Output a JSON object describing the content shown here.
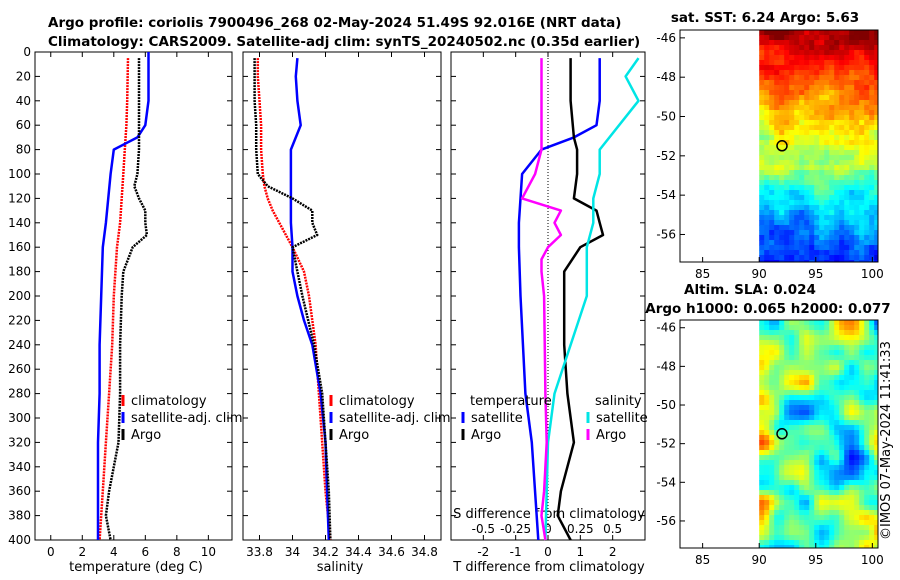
{
  "title": {
    "line1": "Argo profile: coriolis 7900496_268 02-May-2024 51.49S 92.016E (NRT data)",
    "line2": "Climatology: CARS2009. Satellite-adj clim: synTS_20240502.nc (0.35d earlier)"
  },
  "watermark": "©IMOS 07-May-2024 11:41:33",
  "colors": {
    "climatology": "#ff0000",
    "satellite_adj": "#0000ff",
    "argo": "#000000",
    "sat_diff_T": "#0000ff",
    "sat_diff_S": "#00e5e5",
    "argo_diff_S": "#ff00ff"
  },
  "depth_ticks": [
    0,
    20,
    40,
    60,
    80,
    100,
    120,
    140,
    160,
    180,
    200,
    220,
    240,
    260,
    280,
    300,
    320,
    340,
    360,
    380,
    400
  ],
  "legend_main": {
    "climatology": "climatology",
    "satellite": "satellite-adj. clim",
    "argo": "Argo"
  },
  "legend_diff": {
    "temperature_title": "temperature",
    "salinity_title": "salinity",
    "satellite": "satellite",
    "argo": "Argo"
  },
  "chart_data": [
    {
      "type": "line",
      "id": "temperature",
      "xlabel": "temperature (deg C)",
      "ylabel": "depth",
      "xlim": [
        -1,
        11.5
      ],
      "ylim": [
        400,
        0
      ],
      "xticks": [
        "0",
        "2",
        "4",
        "6",
        "8",
        "10"
      ],
      "xtick_values": [
        0,
        2,
        4,
        6,
        8,
        10
      ],
      "series": [
        {
          "name": "climatology",
          "depth": [
            5,
            40,
            60,
            80,
            100,
            120,
            140,
            160,
            180,
            200,
            240,
            280,
            320,
            360,
            380,
            400
          ],
          "values": [
            4.9,
            4.85,
            4.8,
            4.7,
            4.6,
            4.5,
            4.4,
            4.2,
            4.1,
            4.0,
            3.9,
            3.7,
            3.5,
            3.3,
            3.2,
            3.1
          ]
        },
        {
          "name": "satellite-adj. clim",
          "depth": [
            0,
            20,
            40,
            60,
            70,
            80,
            100,
            140,
            160,
            200,
            240,
            280,
            320,
            360,
            380,
            400
          ],
          "values": [
            6.2,
            6.2,
            6.2,
            6.0,
            5.5,
            4.0,
            3.8,
            3.5,
            3.3,
            3.2,
            3.1,
            3.1,
            3.0,
            3.0,
            3.0,
            3.0
          ]
        },
        {
          "name": "Argo",
          "depth": [
            5,
            40,
            80,
            100,
            110,
            120,
            130,
            140,
            150,
            160,
            180,
            200,
            240,
            280,
            320,
            340,
            360,
            380,
            400
          ],
          "values": [
            5.6,
            5.6,
            5.6,
            5.5,
            5.3,
            5.6,
            6.0,
            6.0,
            6.1,
            5.2,
            4.6,
            4.5,
            4.4,
            4.4,
            4.3,
            4.0,
            3.7,
            3.5,
            3.8
          ]
        }
      ]
    },
    {
      "type": "line",
      "id": "salinity",
      "xlabel": "salinity",
      "ylabel": "depth",
      "xlim": [
        33.7,
        34.9
      ],
      "ylim": [
        400,
        0
      ],
      "xticks": [
        "33.8",
        "34",
        "34.2",
        "34.4",
        "34.6",
        "34.8"
      ],
      "xtick_values": [
        33.8,
        34.0,
        34.2,
        34.4,
        34.6,
        34.8
      ],
      "series": [
        {
          "name": "climatology",
          "depth": [
            5,
            20,
            40,
            60,
            80,
            100,
            110,
            120,
            130,
            140,
            160,
            180,
            200,
            240,
            280,
            320,
            360,
            400
          ],
          "values": [
            33.79,
            33.79,
            33.8,
            33.81,
            33.81,
            33.82,
            33.83,
            33.85,
            33.88,
            33.92,
            34.0,
            34.07,
            34.1,
            34.14,
            34.16,
            34.18,
            34.2,
            34.23
          ]
        },
        {
          "name": "satellite-adj. clim",
          "depth": [
            5,
            20,
            40,
            60,
            80,
            100,
            120,
            140,
            160,
            180,
            200,
            220,
            240,
            280,
            320,
            360,
            400
          ],
          "values": [
            34.03,
            34.02,
            34.03,
            34.05,
            33.99,
            33.99,
            33.99,
            33.99,
            34.0,
            34.0,
            34.03,
            34.07,
            34.12,
            34.17,
            34.2,
            34.21,
            34.22
          ]
        },
        {
          "name": "Argo",
          "depth": [
            5,
            20,
            40,
            60,
            80,
            100,
            110,
            120,
            130,
            140,
            150,
            160,
            180,
            200,
            240,
            280,
            320,
            360,
            400
          ],
          "values": [
            33.77,
            33.77,
            33.77,
            33.78,
            33.78,
            33.79,
            33.85,
            34.0,
            34.12,
            34.12,
            34.15,
            34.0,
            34.03,
            34.06,
            34.13,
            34.18,
            34.2,
            34.22,
            34.23
          ]
        }
      ]
    },
    {
      "type": "line",
      "id": "difference",
      "xlabel": "T difference from climatology",
      "xlabel_top": "S difference from climatology",
      "ylabel": "depth",
      "xlim": [
        -3,
        3
      ],
      "ylim": [
        400,
        0
      ],
      "xticks": [
        "-2",
        "-1",
        "0",
        "1",
        "2"
      ],
      "xtick_values": [
        -2,
        -1,
        0,
        1,
        2
      ],
      "xticks_S": [
        "-0.5",
        "-0.25",
        "0",
        "0.25",
        "0.5"
      ],
      "xtick_values_S": [
        -0.5,
        -0.25,
        0,
        0.25,
        0.5
      ],
      "series": [
        {
          "name": "satellite T",
          "depth": [
            5,
            20,
            40,
            60,
            70,
            80,
            100,
            140,
            160,
            200,
            280,
            320,
            400
          ],
          "values": [
            1.6,
            1.6,
            1.6,
            1.5,
            0.8,
            -0.2,
            -0.8,
            -0.9,
            -0.9,
            -0.85,
            -0.7,
            -0.5,
            -0.3
          ]
        },
        {
          "name": "Argo T",
          "depth": [
            5,
            40,
            70,
            80,
            100,
            120,
            130,
            140,
            150,
            160,
            180,
            200,
            240,
            280,
            320,
            360,
            380,
            400
          ],
          "values": [
            0.7,
            0.7,
            0.8,
            0.9,
            0.9,
            0.8,
            1.5,
            1.6,
            1.7,
            1.0,
            0.5,
            0.5,
            0.5,
            0.6,
            0.8,
            0.4,
            0.3,
            0.7
          ]
        },
        {
          "name": "satellite S",
          "depth": [
            5,
            20,
            40,
            80,
            100,
            120,
            140,
            160,
            200,
            280,
            320,
            360,
            400
          ],
          "values": [
            0.7,
            0.6,
            0.7,
            0.4,
            0.4,
            0.35,
            0.35,
            0.3,
            0.3,
            0.05,
            0.0,
            -0.01,
            -0.02
          ]
        },
        {
          "name": "Argo S",
          "depth": [
            5,
            40,
            80,
            100,
            110,
            120,
            130,
            140,
            150,
            160,
            170,
            180,
            200,
            280,
            320,
            360,
            380,
            400
          ],
          "values": [
            -0.05,
            -0.05,
            -0.05,
            -0.1,
            -0.15,
            -0.2,
            0.1,
            0.05,
            0.1,
            0.0,
            -0.05,
            -0.05,
            -0.03,
            -0.02,
            -0.01,
            -0.03,
            -0.05,
            -0.02
          ]
        }
      ]
    },
    {
      "type": "heatmap",
      "id": "sst_map",
      "title": "sat. SST: 6.24 Argo: 5.63",
      "sat_sst": 6.24,
      "argo_sst": 5.63,
      "xlim": [
        83,
        100.5
      ],
      "ylim": [
        -57.4,
        -45.6
      ],
      "xticks": [
        "85",
        "90",
        "95",
        "100"
      ],
      "xtick_values": [
        85,
        90,
        95,
        100
      ],
      "yticks": [
        "-46",
        "-48",
        "-50",
        "-52",
        "-54",
        "-56"
      ],
      "ytick_values": [
        -46,
        -48,
        -50,
        -52,
        -54,
        -56
      ],
      "float_position": [
        92.016,
        -51.49
      ]
    },
    {
      "type": "heatmap",
      "id": "sla_map",
      "title": "Altim. SLA: 0.024",
      "subtitle": "Argo h1000: 0.065 h2000: 0.077",
      "sla": 0.024,
      "h1000": 0.065,
      "h2000": 0.077,
      "xlim": [
        83,
        100.5
      ],
      "ylim": [
        -57.4,
        -45.6
      ],
      "xticks": [
        "85",
        "90",
        "95",
        "100"
      ],
      "xtick_values": [
        85,
        90,
        95,
        100
      ],
      "yticks": [
        "-46",
        "-48",
        "-50",
        "-52",
        "-54",
        "-56"
      ],
      "ytick_values": [
        -46,
        -48,
        -50,
        -52,
        -54,
        -56
      ],
      "float_position": [
        92.016,
        -51.49
      ]
    }
  ]
}
